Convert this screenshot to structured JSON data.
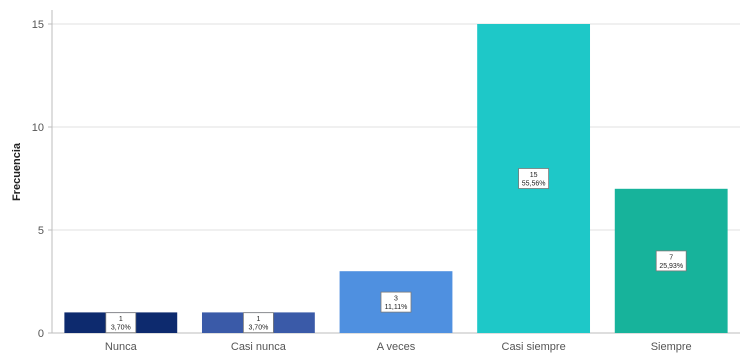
{
  "chart_data": {
    "type": "bar",
    "title": "",
    "xlabel": "",
    "ylabel": "Frecuencia",
    "categories": [
      "Nunca",
      "Casi nunca",
      "A veces",
      "Casi siempre",
      "Siempre"
    ],
    "values": [
      1,
      1,
      3,
      15,
      7
    ],
    "labels": [
      {
        "count": "1",
        "percent": "3,70%"
      },
      {
        "count": "1",
        "percent": "3,70%"
      },
      {
        "count": "3",
        "percent": "11,11%"
      },
      {
        "count": "15",
        "percent": "55,56%"
      },
      {
        "count": "7",
        "percent": "25,93%"
      }
    ],
    "colors": [
      "#0d2a6e",
      "#3a5aa8",
      "#4f90e0",
      "#1ec8c8",
      "#17b39b"
    ],
    "yticks": [
      0,
      5,
      10,
      15
    ],
    "ylim": [
      0,
      15
    ],
    "grid": true
  }
}
